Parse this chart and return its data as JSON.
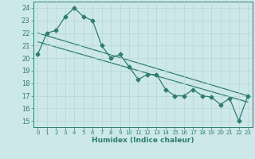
{
  "jagged_x": [
    0,
    1,
    2,
    3,
    4,
    5,
    6,
    7,
    8,
    9,
    10,
    11,
    12,
    13,
    14,
    15,
    16,
    17,
    18,
    19,
    20,
    21,
    22,
    23
  ],
  "jagged_y": [
    20.3,
    22.0,
    22.2,
    23.3,
    24.0,
    23.3,
    23.0,
    21.0,
    20.0,
    20.3,
    19.3,
    18.3,
    18.7,
    18.7,
    17.5,
    17.0,
    17.0,
    17.5,
    17.0,
    16.9,
    16.3,
    16.8,
    15.0,
    17.0
  ],
  "trend1_x": [
    0,
    23
  ],
  "trend1_y": [
    22.0,
    17.0
  ],
  "trend2_x": [
    0,
    23
  ],
  "trend2_y": [
    21.3,
    16.5
  ],
  "line_color": "#2e7d6e",
  "bg_color": "#cde8e8",
  "grid_color": "#b8d4d4",
  "xlabel": "Humidex (Indice chaleur)",
  "xlim": [
    -0.5,
    23.5
  ],
  "ylim": [
    14.5,
    24.5
  ],
  "xticks": [
    0,
    1,
    2,
    3,
    4,
    5,
    6,
    7,
    8,
    9,
    10,
    11,
    12,
    13,
    14,
    15,
    16,
    17,
    18,
    19,
    20,
    21,
    22,
    23
  ],
  "yticks": [
    15,
    16,
    17,
    18,
    19,
    20,
    21,
    22,
    23,
    24
  ]
}
